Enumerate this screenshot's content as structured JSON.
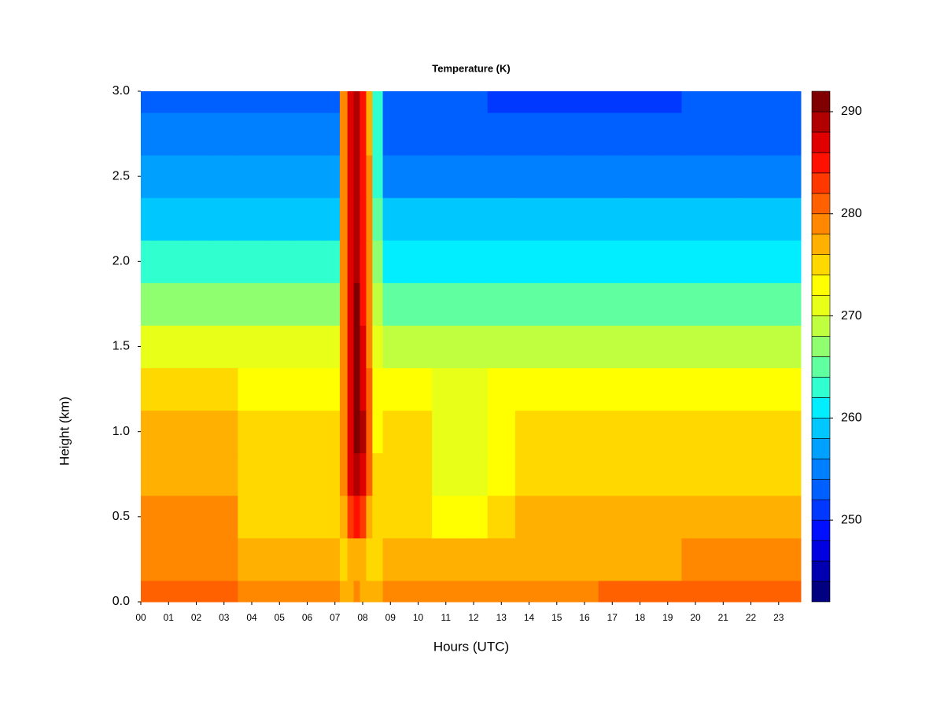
{
  "chart_data": {
    "type": "heatmap",
    "title": "Temperature (K)",
    "xlabel": "Hours (UTC)",
    "ylabel": "Height (km)",
    "x": [
      0,
      1,
      2,
      3,
      4,
      5,
      6,
      7,
      7.35,
      7.55,
      7.8,
      8.0,
      8.25,
      8.45,
      9,
      10,
      11,
      12,
      13,
      14,
      15,
      16,
      17,
      18,
      19,
      20,
      21,
      22,
      23
    ],
    "y": [
      0,
      0.25,
      0.5,
      0.75,
      1.0,
      1.25,
      1.5,
      1.75,
      2.0,
      2.25,
      2.5,
      2.75,
      3.0
    ],
    "z": [
      [
        281,
        281,
        281,
        281,
        279,
        279,
        279,
        279,
        276,
        277,
        278,
        277,
        276,
        277,
        278,
        278,
        278,
        278,
        278,
        279,
        279,
        279,
        280,
        280,
        280,
        280,
        280,
        280,
        280
      ],
      [
        279,
        279,
        279,
        279,
        277,
        277,
        277,
        277,
        275,
        276,
        277,
        276,
        275,
        275,
        276,
        276,
        276,
        276,
        276,
        277,
        277,
        277,
        277,
        277,
        277,
        278,
        278,
        278,
        278
      ],
      [
        278,
        278,
        278,
        278,
        275,
        275,
        275,
        275,
        277,
        283,
        285,
        283,
        277,
        274,
        275,
        275,
        273,
        273,
        275,
        276,
        276,
        276,
        276,
        276,
        276,
        277,
        277,
        277,
        277
      ],
      [
        277,
        277,
        277,
        277,
        275,
        275,
        275,
        275,
        279,
        286,
        289,
        287,
        280,
        274,
        274,
        274,
        271,
        271,
        273,
        275,
        275,
        275,
        275,
        275,
        275,
        275,
        275,
        275,
        275
      ],
      [
        277,
        277,
        277,
        277,
        275,
        275,
        275,
        275,
        279,
        287,
        291,
        288,
        280,
        273,
        274,
        274,
        271,
        271,
        273,
        274,
        274,
        274,
        274,
        274,
        274,
        274,
        274,
        274,
        274
      ],
      [
        274,
        274,
        274,
        274,
        273,
        273,
        273,
        273,
        279,
        287,
        291,
        287,
        280,
        272,
        272,
        272,
        271,
        271,
        272,
        272,
        272,
        272,
        272,
        272,
        272,
        272,
        272,
        272,
        272
      ],
      [
        270,
        270,
        270,
        270,
        270,
        270,
        270,
        270,
        279,
        287,
        290,
        286,
        279,
        270,
        268,
        268,
        268,
        268,
        268,
        268,
        268,
        268,
        268,
        268,
        268,
        268,
        268,
        268,
        268
      ],
      [
        266,
        266,
        266,
        266,
        266,
        266,
        266,
        266,
        279,
        287,
        290,
        285,
        279,
        268,
        265,
        265,
        264,
        264,
        264,
        264,
        264,
        264,
        264,
        264,
        264,
        264,
        264,
        264,
        264
      ],
      [
        262,
        262,
        262,
        262,
        262,
        262,
        262,
        262,
        279,
        287,
        289,
        285,
        279,
        266,
        261,
        261,
        261,
        261,
        261,
        261,
        261,
        261,
        261,
        261,
        261,
        261,
        261,
        261,
        261
      ],
      [
        259,
        259,
        259,
        259,
        259,
        259,
        259,
        259,
        278,
        287,
        289,
        284,
        278,
        264,
        258,
        258,
        258,
        258,
        258,
        258,
        258,
        258,
        258,
        258,
        258,
        258,
        258,
        258,
        258
      ],
      [
        256,
        256,
        256,
        256,
        256,
        256,
        256,
        256,
        278,
        286,
        289,
        284,
        278,
        263,
        255,
        255,
        255,
        255,
        255,
        254,
        254,
        254,
        254,
        254,
        254,
        255,
        255,
        255,
        255
      ],
      [
        254,
        254,
        254,
        254,
        254,
        254,
        254,
        254,
        278,
        286,
        289,
        284,
        277,
        262,
        253,
        253,
        253,
        253,
        252,
        252,
        252,
        252,
        252,
        252,
        252,
        253,
        253,
        253,
        253
      ],
      [
        253,
        253,
        253,
        253,
        253,
        253,
        253,
        253,
        278,
        286,
        289,
        284,
        277,
        262,
        252,
        252,
        252,
        252,
        251,
        251,
        251,
        251,
        251,
        251,
        251,
        252,
        252,
        252,
        252
      ]
    ],
    "xlim": [
      0,
      23.8
    ],
    "ylim": [
      0,
      3
    ],
    "xticks": [
      {
        "value": 0,
        "label": "00"
      },
      {
        "value": 1,
        "label": "01"
      },
      {
        "value": 2,
        "label": "02"
      },
      {
        "value": 3,
        "label": "03"
      },
      {
        "value": 4,
        "label": "04"
      },
      {
        "value": 5,
        "label": "05"
      },
      {
        "value": 6,
        "label": "06"
      },
      {
        "value": 7,
        "label": "07"
      },
      {
        "value": 8,
        "label": "08"
      },
      {
        "value": 9,
        "label": "09"
      },
      10,
      11,
      12,
      13,
      14,
      15,
      16,
      17,
      18,
      19,
      20,
      21,
      22,
      23
    ],
    "yticks": [
      {
        "value": 0,
        "label": "0.0"
      },
      0.5,
      {
        "value": 1,
        "label": "1.0"
      },
      1.5,
      {
        "value": 2,
        "label": "2.0"
      },
      2.5,
      {
        "value": 3,
        "label": "3.0"
      }
    ],
    "levels": [
      242,
      244,
      246,
      248,
      250,
      252,
      254,
      256,
      258,
      260,
      262,
      264,
      266,
      268,
      270,
      272,
      274,
      276,
      278,
      280,
      282,
      284,
      286,
      288,
      290,
      292
    ],
    "colors": [
      "#000080",
      "#0000b0",
      "#0000e0",
      "#0010ff",
      "#0038ff",
      "#0060ff",
      "#0080ff",
      "#00a0ff",
      "#00c8ff",
      "#00eeff",
      "#30ffcf",
      "#60ff9f",
      "#90ff6f",
      "#c0ff40",
      "#e8ff18",
      "#ffff00",
      "#ffd800",
      "#ffb000",
      "#ff8800",
      "#ff6000",
      "#ff3800",
      "#ff1000",
      "#e00000",
      "#b00000",
      "#800000"
    ],
    "zlim": [
      242,
      292
    ],
    "zticks": [
      250,
      260,
      270,
      280,
      290
    ]
  }
}
